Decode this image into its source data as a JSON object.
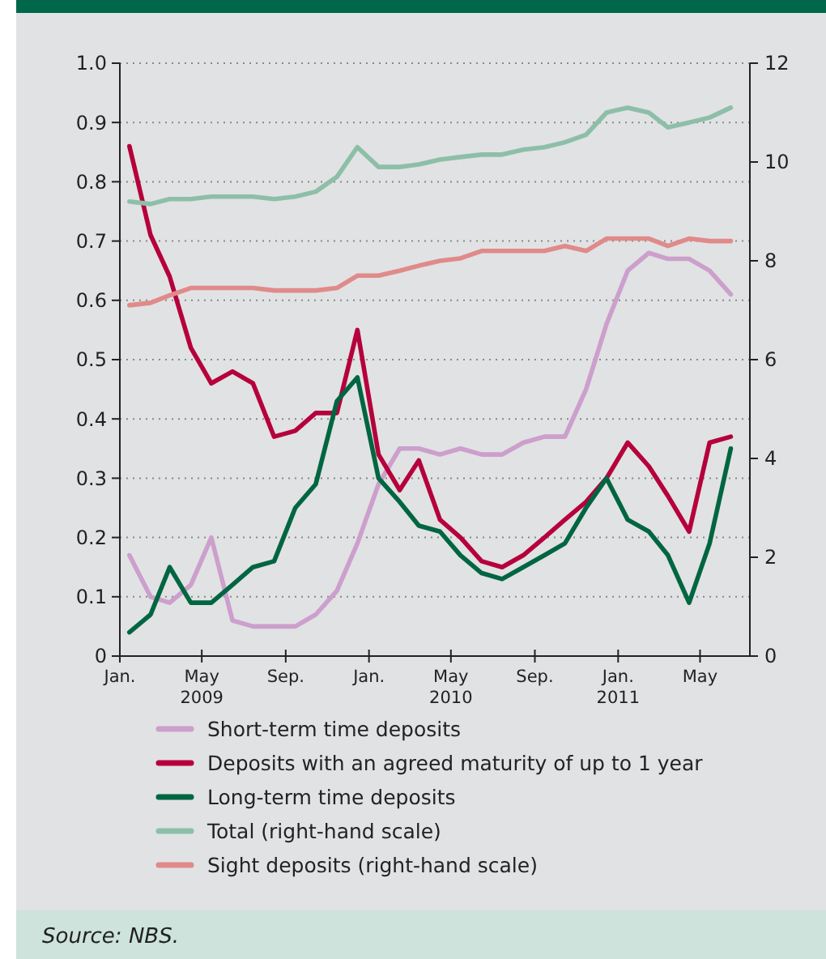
{
  "chart_data": {
    "type": "line",
    "x": [
      "2009-01-15",
      "2009-02-15",
      "2009-03-15",
      "2009-04-15",
      "2009-05-15",
      "2009-06-15",
      "2009-07-15",
      "2009-08-15",
      "2009-09-15",
      "2009-10-15",
      "2009-11-15",
      "2009-12-15",
      "2010-01-15",
      "2010-02-15",
      "2010-03-15",
      "2010-04-15",
      "2010-05-15",
      "2010-06-15",
      "2010-07-15",
      "2010-08-15",
      "2010-09-15",
      "2010-10-15",
      "2010-11-15",
      "2010-12-15",
      "2011-01-15",
      "2011-02-15",
      "2011-03-15",
      "2011-04-15",
      "2011-05-15",
      "2011-06-15"
    ],
    "series": [
      {
        "name": "Short-term time deposits",
        "color": "#cc9fcc",
        "values": [
          0.17,
          0.1,
          0.09,
          0.12,
          0.2,
          0.06,
          0.05,
          0.05,
          0.05,
          0.07,
          0.11,
          0.19,
          0.29,
          0.35,
          0.35,
          0.34,
          0.35,
          0.34,
          0.34,
          0.36,
          0.37,
          0.37,
          0.45,
          0.56,
          0.65,
          0.68,
          0.67,
          0.67,
          0.65,
          0.61
        ]
      },
      {
        "name": "Deposits with an agreed maturity of up to 1 year",
        "color": "#b5003c",
        "values": [
          0.86,
          0.71,
          0.64,
          0.52,
          0.46,
          0.48,
          0.46,
          0.37,
          0.38,
          0.41,
          0.41,
          0.55,
          0.34,
          0.28,
          0.33,
          0.23,
          0.2,
          0.16,
          0.15,
          0.17,
          0.2,
          0.23,
          0.26,
          0.3,
          0.36,
          0.32,
          0.27,
          0.21,
          0.36,
          0.37
        ]
      },
      {
        "name": "Long-term time deposits",
        "color": "#006641",
        "values": [
          0.04,
          0.07,
          0.15,
          0.09,
          0.09,
          0.12,
          0.15,
          0.16,
          0.25,
          0.29,
          0.43,
          0.47,
          0.3,
          0.26,
          0.22,
          0.21,
          0.17,
          0.14,
          0.13,
          0.15,
          0.17,
          0.19,
          0.25,
          0.3,
          0.23,
          0.21,
          0.17,
          0.09,
          0.19,
          0.35
        ]
      },
      {
        "name": "Total (right-hand scale)",
        "color": "#8dbfa8",
        "axis": "y2",
        "values": [
          9.2,
          9.15,
          9.25,
          9.25,
          9.3,
          9.3,
          9.3,
          9.25,
          9.3,
          9.4,
          9.7,
          10.3,
          9.9,
          9.9,
          9.95,
          10.05,
          10.1,
          10.15,
          10.15,
          10.25,
          10.3,
          10.4,
          10.55,
          11.0,
          11.1,
          11.0,
          10.7,
          10.8,
          10.9,
          11.1
        ]
      },
      {
        "name": "Sight deposits (right-hand scale)",
        "color": "#e08a8a",
        "axis": "y2",
        "values": [
          7.1,
          7.15,
          7.3,
          7.45,
          7.45,
          7.45,
          7.45,
          7.4,
          7.4,
          7.4,
          7.45,
          7.7,
          7.7,
          7.8,
          7.9,
          8.0,
          8.05,
          8.2,
          8.2,
          8.2,
          8.2,
          8.3,
          8.2,
          8.45,
          8.45,
          8.45,
          8.3,
          8.45,
          8.4,
          8.4
        ]
      }
    ],
    "xlim": [
      "2009-01-01",
      "2011-07-13"
    ],
    "xticks": [
      {
        "value": "2009-01-01",
        "label": "Jan."
      },
      {
        "value": "2009-05-01",
        "label": "May\n2009"
      },
      {
        "value": "2009-09-01",
        "label": "Sep."
      },
      {
        "value": "2010-01-01",
        "label": "Jan."
      },
      {
        "value": "2010-05-01",
        "label": "May\n2010"
      },
      {
        "value": "2010-09-01",
        "label": "Sep."
      },
      {
        "value": "2011-01-01",
        "label": "Jan.\n2011"
      },
      {
        "value": "2011-05-01",
        "label": "May"
      }
    ],
    "ylim": [
      0,
      1
    ],
    "yticks": [
      0,
      0.1,
      0.2,
      0.3,
      0.4,
      0.5,
      0.6,
      0.7,
      0.8,
      0.9,
      {
        "value": 1,
        "label": "1.0"
      }
    ],
    "y2lim": [
      0,
      12
    ],
    "y2ticks": [
      0,
      2,
      4,
      6,
      8,
      10,
      12
    ],
    "grid": "y",
    "legend": "bottom",
    "marker": "none",
    "line_style": "solid",
    "annotations": [
      "Source: NBS."
    ]
  }
}
